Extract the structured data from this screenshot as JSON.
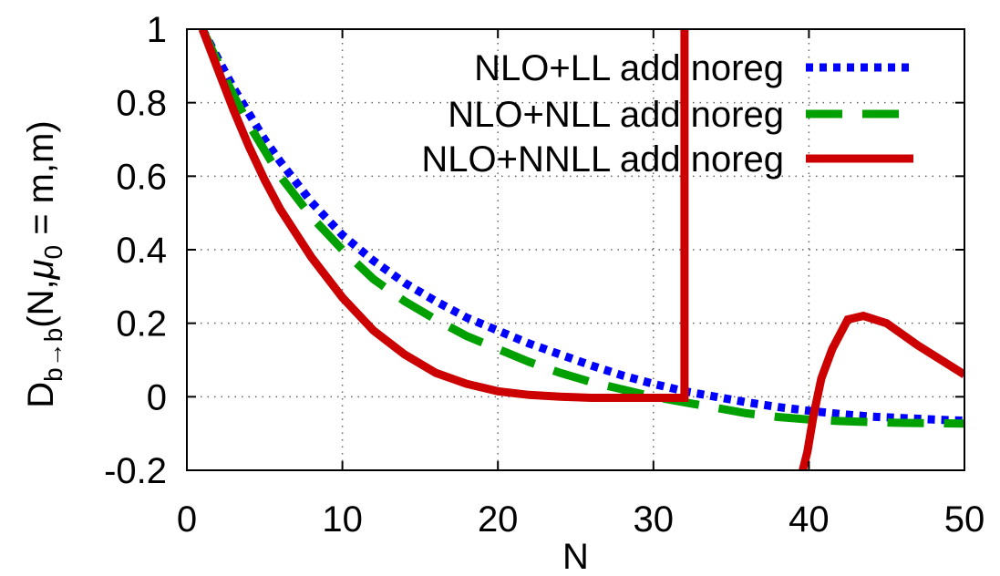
{
  "chart_data": {
    "type": "line",
    "xlabel": "N",
    "ylabel_parts": {
      "main": "D",
      "sub": "b→b",
      "open": "(N,",
      "mu": "μ",
      "mu_sub": "0",
      "rest": " = m,m)"
    },
    "xlim": [
      0,
      50
    ],
    "ylim": [
      -0.2,
      1
    ],
    "x_ticks": [
      "0",
      "10",
      "20",
      "30",
      "40",
      "50"
    ],
    "y_ticks": [
      "-0.2",
      "0",
      "0.2",
      "0.4",
      "0.6",
      "0.8",
      "1"
    ],
    "grid": true,
    "legend_position": "top-right",
    "series": [
      {
        "name": "NLO+LL add noreg",
        "color": "#0000ff",
        "style": "dotted",
        "x": [
          1,
          2,
          3,
          4,
          5,
          6,
          8,
          10,
          12,
          14,
          16,
          18,
          20,
          22,
          24,
          26,
          28,
          30,
          32,
          34,
          36,
          38,
          40,
          42,
          44,
          46,
          48,
          50
        ],
        "y": [
          1.0,
          0.92,
          0.84,
          0.77,
          0.7,
          0.64,
          0.53,
          0.44,
          0.37,
          0.31,
          0.26,
          0.215,
          0.18,
          0.145,
          0.115,
          0.085,
          0.058,
          0.035,
          0.015,
          0.0,
          -0.015,
          -0.028,
          -0.038,
          -0.047,
          -0.054,
          -0.058,
          -0.062,
          -0.065
        ]
      },
      {
        "name": "NLO+NLL add noreg",
        "color": "#00a000",
        "style": "dashed",
        "x": [
          1,
          2,
          3,
          4,
          5,
          6,
          8,
          10,
          12,
          14,
          16,
          18,
          20,
          22,
          24,
          26,
          28,
          30,
          32,
          34,
          36,
          38,
          40,
          42,
          44,
          46,
          48,
          50
        ],
        "y": [
          1.0,
          0.91,
          0.82,
          0.74,
          0.67,
          0.6,
          0.49,
          0.4,
          0.32,
          0.26,
          0.21,
          0.165,
          0.13,
          0.095,
          0.065,
          0.04,
          0.02,
          0.0,
          -0.015,
          -0.03,
          -0.045,
          -0.055,
          -0.062,
          -0.066,
          -0.069,
          -0.071,
          -0.072,
          -0.073
        ]
      },
      {
        "name": "NLO+NNLL add noreg",
        "color": "#cc0000",
        "style": "solid",
        "x": [
          1,
          2,
          3,
          4,
          5,
          6,
          8,
          10,
          12,
          14,
          16,
          18,
          20,
          22,
          24,
          26,
          28,
          30,
          31.5,
          32,
          32,
          null,
          39.6,
          39.9,
          40.3,
          40.8,
          41.5,
          42.5,
          43.5,
          45,
          47,
          50
        ],
        "y": [
          1.0,
          0.89,
          0.78,
          0.68,
          0.59,
          0.51,
          0.38,
          0.27,
          0.18,
          0.115,
          0.065,
          0.035,
          0.015,
          0.005,
          0.0,
          -0.003,
          -0.003,
          -0.003,
          -0.003,
          -0.003,
          1.0,
          null,
          -0.2,
          -0.15,
          -0.05,
          0.05,
          0.13,
          0.21,
          0.22,
          0.2,
          0.14,
          0.06
        ]
      }
    ]
  }
}
